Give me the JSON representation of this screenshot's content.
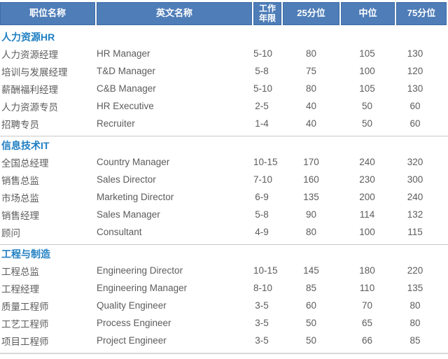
{
  "table": {
    "columns": [
      "职位名称",
      "英文名称",
      "工作年限",
      "25分位",
      "中位",
      "75分位"
    ]
  },
  "sections": [
    {
      "title": "人力资源HR",
      "rows": [
        {
          "position": "人力资源经理",
          "english": "HR Manager",
          "years": "5-10",
          "p25": "80",
          "median": "105",
          "p75": "130"
        },
        {
          "position": "培训与发展经理",
          "english": "T&D Manager",
          "years": "5-8",
          "p25": "75",
          "median": "100",
          "p75": "120"
        },
        {
          "position": "薪酬福利经理",
          "english": "C&B Manager",
          "years": "5-10",
          "p25": "80",
          "median": "105",
          "p75": "130"
        },
        {
          "position": "人力资源专员",
          "english": "HR Executive",
          "years": "2-5",
          "p25": "40",
          "median": "50",
          "p75": "60"
        },
        {
          "position": "招聘专员",
          "english": "Recruiter",
          "years": "1-4",
          "p25": "40",
          "median": "50",
          "p75": "60"
        }
      ]
    },
    {
      "title": "信息技术IT",
      "rows": [
        {
          "position": "全国总经理",
          "english": "Country Manager",
          "years": "10-15",
          "p25": "170",
          "median": "240",
          "p75": "320"
        },
        {
          "position": "销售总监",
          "english": "Sales Director",
          "years": "7-10",
          "p25": "160",
          "median": "230",
          "p75": "300"
        },
        {
          "position": "市场总监",
          "english": "Marketing Director",
          "years": "6-9",
          "p25": "135",
          "median": "200",
          "p75": "240"
        },
        {
          "position": "销售经理",
          "english": "Sales Manager",
          "years": "5-8",
          "p25": "90",
          "median": "114",
          "p75": "132"
        },
        {
          "position": "顾问",
          "english": "Consultant",
          "years": "4-9",
          "p25": "80",
          "median": "100",
          "p75": "115"
        }
      ]
    },
    {
      "title": "工程与制造",
      "rows": [
        {
          "position": "工程总监",
          "english": "Engineering Director",
          "years": "10-15",
          "p25": "145",
          "median": "180",
          "p75": "220"
        },
        {
          "position": "工程经理",
          "english": "Engineering Manager",
          "years": "8-10",
          "p25": "85",
          "median": "110",
          "p75": "135"
        },
        {
          "position": "质量工程师",
          "english": "Quality Engineer",
          "years": "3-5",
          "p25": "60",
          "median": "70",
          "p75": "80"
        },
        {
          "position": "工艺工程师",
          "english": "Process Engineer",
          "years": "3-5",
          "p25": "50",
          "median": "65",
          "p75": "80"
        },
        {
          "position": "项目工程师",
          "english": "Project Engineer",
          "years": "3-5",
          "p25": "50",
          "median": "66",
          "p75": "85"
        }
      ]
    }
  ],
  "colors": {
    "header_bg": "#4e7db8",
    "header_border": "#3e6da6",
    "header_text": "#ffffff",
    "section_title_text": "#2180c3",
    "body_text": "#5c5c5c",
    "section_divider": "#c9c9c9",
    "bottom_divider": "#d9d9d9"
  },
  "chart_data": {
    "type": "table",
    "columns": [
      "职位名称",
      "英文名称",
      "工作年限",
      "25分位",
      "中位",
      "75分位"
    ],
    "sections": [
      {
        "title": "人力资源HR",
        "rows": [
          [
            "人力资源经理",
            "HR Manager",
            "5-10",
            80,
            105,
            130
          ],
          [
            "培训与发展经理",
            "T&D Manager",
            "5-8",
            75,
            100,
            120
          ],
          [
            "薪酬福利经理",
            "C&B Manager",
            "5-10",
            80,
            105,
            130
          ],
          [
            "人力资源专员",
            "HR Executive",
            "2-5",
            40,
            50,
            60
          ],
          [
            "招聘专员",
            "Recruiter",
            "1-4",
            40,
            50,
            60
          ]
        ]
      },
      {
        "title": "信息技术IT",
        "rows": [
          [
            "全国总经理",
            "Country Manager",
            "10-15",
            170,
            240,
            320
          ],
          [
            "销售总监",
            "Sales Director",
            "7-10",
            160,
            230,
            300
          ],
          [
            "市场总监",
            "Marketing Director",
            "6-9",
            135,
            200,
            240
          ],
          [
            "销售经理",
            "Sales Manager",
            "5-8",
            90,
            114,
            132
          ],
          [
            "顾问",
            "Consultant",
            "4-9",
            80,
            100,
            115
          ]
        ]
      },
      {
        "title": "工程与制造",
        "rows": [
          [
            "工程总监",
            "Engineering Director",
            "10-15",
            145,
            180,
            220
          ],
          [
            "工程经理",
            "Engineering Manager",
            "8-10",
            85,
            110,
            135
          ],
          [
            "质量工程师",
            "Quality Engineer",
            "3-5",
            60,
            70,
            80
          ],
          [
            "工艺工程师",
            "Process Engineer",
            "3-5",
            50,
            65,
            80
          ],
          [
            "项目工程师",
            "Project Engineer",
            "3-5",
            50,
            66,
            85
          ]
        ]
      }
    ]
  }
}
